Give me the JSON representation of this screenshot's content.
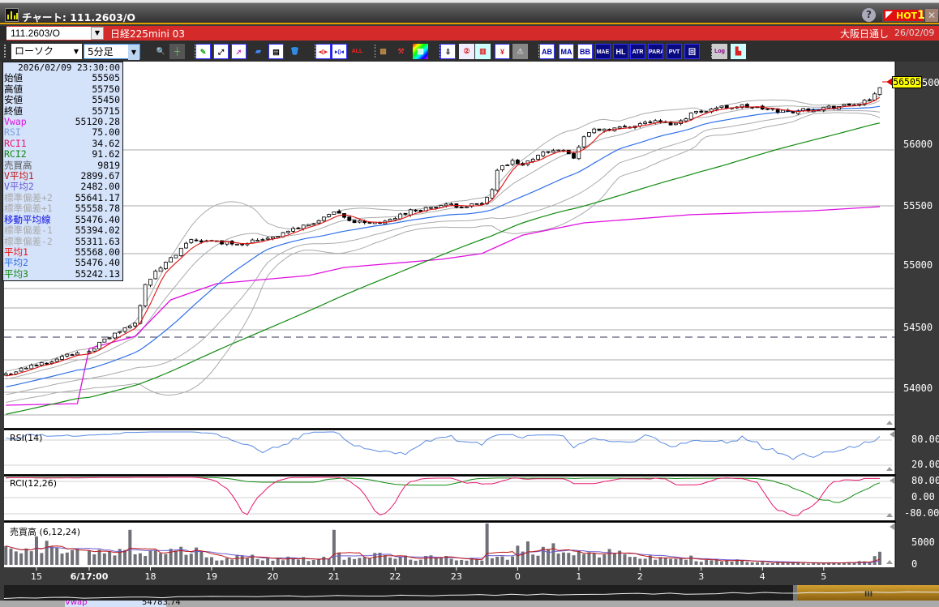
{
  "window": {
    "title": "チャート: 111.2603/O",
    "help": "?",
    "hot": "HOT",
    "hot_num": "1",
    "close": "✕"
  },
  "symbolbar": {
    "symbol": "111.2603/O",
    "name": "日経225mini 03",
    "session": "大阪日通し",
    "date": "26/02/09"
  },
  "toolbar": {
    "chart_type": "ローソク",
    "interval": "5分足",
    "icons": [
      {
        "name": "zoom-icon",
        "glyph": "🔍",
        "bg": "#2e2e2e",
        "fg": "#4af"
      },
      {
        "name": "crosshair-icon",
        "glyph": "┼",
        "bg": "#555",
        "fg": "#6c6"
      },
      {
        "name": "pen-icon",
        "glyph": "✎",
        "bg": "#fff",
        "fg": "#2a2"
      },
      {
        "name": "line-arrow-icon",
        "glyph": "⤢",
        "bg": "#fff",
        "fg": "#000"
      },
      {
        "name": "pointer-icon",
        "glyph": "➚",
        "bg": "#fff",
        "fg": "#c2c"
      },
      {
        "name": "eraser-icon",
        "glyph": "▰",
        "bg": "#2e2e2e",
        "fg": "#48f"
      },
      {
        "name": "copy-icon",
        "glyph": "▤",
        "bg": "#fff",
        "fg": "#000"
      },
      {
        "name": "trash-icon",
        "glyph": "🗑",
        "bg": "#2e2e2e",
        "fg": "#39f"
      },
      {
        "name": "candle-widen-icon",
        "glyph": "◂▯▸",
        "bg": "#fff",
        "fg": "#d22"
      },
      {
        "name": "candle-narrow-icon",
        "glyph": "▸▯◂",
        "bg": "#fff",
        "fg": "#22d"
      },
      {
        "name": "all-icon",
        "glyph": "ALL",
        "bg": "#2e2e2e",
        "fg": "#f22"
      },
      {
        "name": "texture-icon",
        "glyph": "▦",
        "bg": "#2e2e2e",
        "fg": "#b84"
      },
      {
        "name": "wrench-icon",
        "glyph": "⚒",
        "bg": "#2e2e2e",
        "fg": "#d33"
      },
      {
        "name": "color-palette-icon",
        "glyph": "▧",
        "bg": "linear-gradient(135deg,#f00,#ff0,#0f0,#0ff,#00f,#f0f)",
        "fg": "#fff"
      },
      {
        "name": "download-icon",
        "glyph": "⇩",
        "bg": "#fff",
        "fg": "#000"
      },
      {
        "name": "number-icon",
        "glyph": "②",
        "bg": "#eef",
        "fg": "#d22"
      },
      {
        "name": "bar-chart-icon",
        "glyph": "▥",
        "bg": "#cff",
        "fg": "#d22"
      },
      {
        "name": "yen-icon",
        "glyph": "¥",
        "bg": "#fff",
        "fg": "#d22"
      },
      {
        "name": "warning-icon",
        "glyph": "⚠",
        "bg": "#888",
        "fg": "#ccc"
      },
      {
        "name": "ab-icon",
        "glyph": "AB",
        "bg": "#fff",
        "fg": "#00a"
      },
      {
        "name": "ma-icon",
        "glyph": "MA",
        "bg": "#fff",
        "fg": "#00a"
      },
      {
        "name": "bb-icon",
        "glyph": "BB",
        "bg": "#fff",
        "fg": "#00a"
      },
      {
        "name": "mae-icon",
        "glyph": "MAE",
        "bg": "#0a0a80",
        "fg": "#fff"
      },
      {
        "name": "hl-icon",
        "glyph": "HL",
        "bg": "#0a0a80",
        "fg": "#fff"
      },
      {
        "name": "atr-icon",
        "glyph": "ATR",
        "bg": "#0a0a80",
        "fg": "#fff"
      },
      {
        "name": "para-icon",
        "glyph": "PARA",
        "bg": "#0a0a80",
        "fg": "#fff"
      },
      {
        "name": "pvt-icon",
        "glyph": "PVT",
        "bg": "#0a0a80",
        "fg": "#fff"
      },
      {
        "name": "box-icon",
        "glyph": "回",
        "bg": "#0a0a80",
        "fg": "#fff"
      },
      {
        "name": "log-icon",
        "glyph": "Log",
        "bg": "#ccc",
        "fg": "#808"
      },
      {
        "name": "chart-settings-icon",
        "glyph": "▙",
        "bg": "#cff",
        "fg": "#d22"
      }
    ]
  },
  "info_panel": {
    "datetime": "2026/02/09 23:30:00",
    "rows": [
      {
        "label": "始値",
        "value": "55505",
        "color": "#000000"
      },
      {
        "label": "高値",
        "value": "55750",
        "color": "#000000"
      },
      {
        "label": "安値",
        "value": "55450",
        "color": "#000000"
      },
      {
        "label": "終値",
        "value": "55715",
        "color": "#000000"
      },
      {
        "label": "Vwap",
        "value": "55120.28",
        "color": "#e010e0"
      },
      {
        "label": "RSI",
        "value": "75.00",
        "color": "#7aa0e0"
      },
      {
        "label": "RCI1",
        "value": "34.62",
        "color": "#e8186e"
      },
      {
        "label": "RCI2",
        "value": "91.62",
        "color": "#108a10"
      },
      {
        "label": "売買高",
        "value": "9819",
        "color": "#555555"
      },
      {
        "label": "V平均1",
        "value": "2899.67",
        "color": "#c01818"
      },
      {
        "label": "V平均2",
        "value": "2482.00",
        "color": "#6a5ad0"
      },
      {
        "label": "標準偏差+2",
        "value": "55641.17",
        "color": "#aaaaaa"
      },
      {
        "label": "標準偏差+1",
        "value": "55558.78",
        "color": "#aaaaaa"
      },
      {
        "label": "移動平均線",
        "value": "55476.40",
        "color": "#1010e0"
      },
      {
        "label": "標準偏差-1",
        "value": "55394.02",
        "color": "#aaaaaa"
      },
      {
        "label": "標準偏差-2",
        "value": "55311.63",
        "color": "#aaaaaa"
      },
      {
        "label": "平均1",
        "value": "55568.00",
        "color": "#f01010"
      },
      {
        "label": "平均2",
        "value": "55476.40",
        "color": "#3070e8"
      },
      {
        "label": "平均3",
        "value": "55242.13",
        "color": "#108a10"
      }
    ]
  },
  "price_axis": {
    "ticks": [
      "56000",
      "55500",
      "55000",
      "54500",
      "54000"
    ],
    "top_tick_partial": "500",
    "current_price": "56505"
  },
  "time_axis": {
    "labels": [
      {
        "text": "15",
        "time": "15:00"
      },
      {
        "text": "6/17:00",
        "time": "17:00",
        "bold": true
      },
      {
        "text": "18",
        "time": "18:00"
      },
      {
        "text": "19",
        "time": "19:00"
      },
      {
        "text": "20",
        "time": "20:00"
      },
      {
        "text": "21",
        "time": "21:00"
      },
      {
        "text": "22",
        "time": "22:00"
      },
      {
        "text": "23",
        "time": "23:00"
      },
      {
        "text": "0",
        "time": "00:00"
      },
      {
        "text": "1",
        "time": "01:00"
      },
      {
        "text": "2",
        "time": "02:00"
      },
      {
        "text": "3",
        "time": "03:00"
      },
      {
        "text": "4",
        "time": "04:00"
      },
      {
        "text": "5",
        "time": "05:00"
      }
    ]
  },
  "panels": {
    "rsi": {
      "label": "RSI(14)",
      "ticks": [
        "80.00",
        "20.00"
      ]
    },
    "rci": {
      "label": "RCI(12,26)",
      "ticks": [
        "80.00",
        "0.00",
        "-80.00"
      ]
    },
    "volume": {
      "label": "売買高 (6,12,24)",
      "ticks": [
        "5000",
        "0"
      ]
    }
  },
  "footer": {
    "label": "Vwap",
    "value": "54783.74"
  },
  "chart_data": {
    "type": "candlestick",
    "interval": "5min",
    "ylim": [
      53700,
      56600
    ],
    "close_anchors": [
      [
        "14:30",
        54120
      ],
      [
        "15:00",
        54199
      ],
      [
        "15:40",
        54300
      ],
      [
        "17:00",
        54319
      ],
      [
        "17:25",
        54452
      ],
      [
        "17:45",
        54532
      ],
      [
        "17:55",
        54864
      ],
      [
        "18:10",
        54997
      ],
      [
        "18:25",
        55096
      ],
      [
        "18:40",
        55229
      ],
      [
        "18:55",
        55209
      ],
      [
        "19:30",
        55196
      ],
      [
        "20:05",
        55262
      ],
      [
        "20:20",
        55309
      ],
      [
        "20:50",
        55395
      ],
      [
        "21:00",
        55449
      ],
      [
        "21:15",
        55375
      ],
      [
        "21:50",
        55362
      ],
      [
        "22:10",
        55449
      ],
      [
        "22:45",
        55502
      ],
      [
        "23:25",
        55508
      ],
      [
        "23:35",
        55628
      ],
      [
        "23:40",
        55794
      ],
      [
        "23:55",
        55860
      ],
      [
        "00:05",
        55827
      ],
      [
        "00:20",
        55927
      ],
      [
        "00:45",
        55973
      ],
      [
        "00:55",
        55894
      ],
      [
        "01:05",
        56073
      ],
      [
        "01:15",
        56126
      ],
      [
        "01:40",
        56140
      ],
      [
        "02:10",
        56193
      ],
      [
        "02:35",
        56173
      ],
      [
        "02:50",
        56259
      ],
      [
        "03:15",
        56306
      ],
      [
        "03:40",
        56319
      ],
      [
        "04:05",
        56292
      ],
      [
        "04:25",
        56272
      ],
      [
        "04:50",
        56299
      ],
      [
        "05:20",
        56319
      ],
      [
        "05:45",
        56359
      ],
      [
        "05:55",
        56480
      ]
    ],
    "vwap_anchors": [
      [
        "14:30",
        53867
      ],
      [
        "15:40",
        53880
      ],
      [
        "17:00",
        54332
      ],
      [
        "17:45",
        54432
      ],
      [
        "18:20",
        54731
      ],
      [
        "19:05",
        54864
      ],
      [
        "20:35",
        54930
      ],
      [
        "21:10",
        54997
      ],
      [
        "22:45",
        55063
      ],
      [
        "23:25",
        55110
      ],
      [
        "00:05",
        55262
      ],
      [
        "01:05",
        55362
      ],
      [
        "02:50",
        55429
      ],
      [
        "04:50",
        55462
      ],
      [
        "05:55",
        55495
      ]
    ],
    "moving_averages": {
      "ma1": 5,
      "ma2": 25,
      "ma3": 75,
      "bollinger_period": 25
    },
    "horizontal_lines": [
      {
        "price": 54425,
        "style": "dashed"
      }
    ],
    "volume_levels": [
      [
        "14",
        3000
      ],
      [
        "15",
        3200
      ],
      [
        "17",
        2600
      ],
      [
        "18",
        3000
      ],
      [
        "19",
        1700
      ],
      [
        "20",
        1500
      ],
      [
        "21",
        2000
      ],
      [
        "22",
        1500
      ],
      [
        "23",
        1500
      ],
      [
        "00",
        3800
      ],
      [
        "01",
        2500
      ],
      [
        "02",
        1500
      ],
      [
        "03",
        900
      ],
      [
        "04",
        500
      ],
      [
        "05",
        600
      ]
    ],
    "volume_spikes": [
      [
        "15:00",
        6500
      ],
      [
        "15:10",
        5500
      ],
      [
        "17:40",
        8000
      ],
      [
        "21:00",
        8000
      ],
      [
        "23:30",
        9819
      ],
      [
        "05:50",
        2000
      ],
      [
        "05:55",
        3000
      ]
    ],
    "colors": {
      "ma1": "#e01010",
      "ma2": "#3070e8",
      "ma3": "#108a10",
      "vwap": "#e010e0",
      "bollinger": "#aaaaaa",
      "rsi": "#5a8ae0",
      "rci1": "#e8186e",
      "rci2": "#108a10",
      "vol": "#707078",
      "vma1": "#c01818",
      "vma2": "#6a5ad0"
    }
  }
}
